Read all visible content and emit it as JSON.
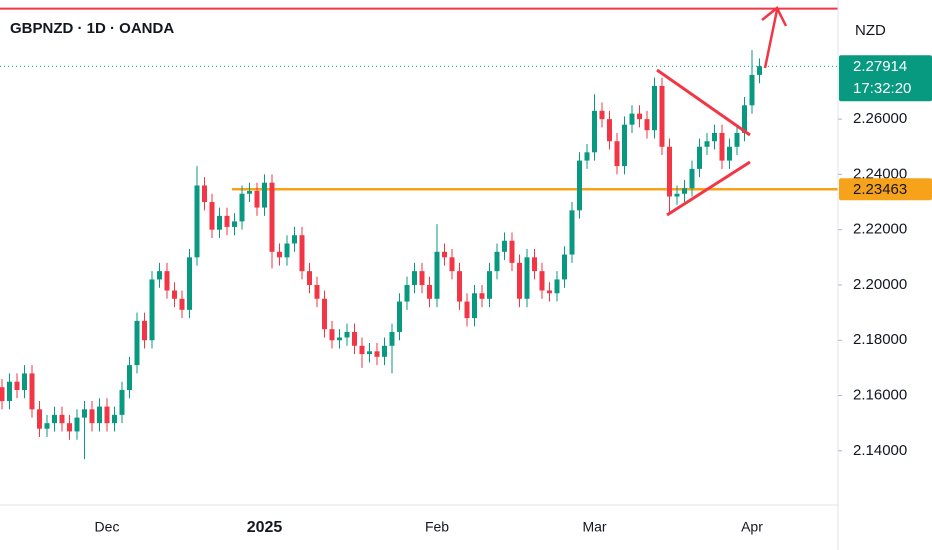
{
  "chart_data": {
    "type": "candlestick",
    "title": "GBPNZD · 1D · OANDA",
    "currency": "NZD",
    "categories": [
      null,
      null,
      null,
      null,
      null,
      null,
      null,
      null,
      null,
      null,
      null,
      null,
      null,
      null,
      "Dec",
      null,
      null,
      null,
      null,
      null,
      null,
      null,
      null,
      null,
      null,
      null,
      null,
      null,
      null,
      null,
      null,
      null,
      null,
      null,
      null,
      "2025",
      null,
      null,
      null,
      null,
      null,
      null,
      null,
      null,
      null,
      null,
      null,
      null,
      null,
      null,
      null,
      null,
      null,
      null,
      null,
      null,
      null,
      null,
      "Feb",
      null,
      null,
      null,
      null,
      null,
      null,
      null,
      null,
      null,
      null,
      null,
      null,
      null,
      null,
      null,
      null,
      null,
      null,
      null,
      null,
      "Mar",
      null,
      null,
      null,
      null,
      null,
      null,
      null,
      null,
      null,
      null,
      null,
      null,
      null,
      null,
      null,
      null,
      null,
      null,
      null,
      null,
      "Apr",
      null
    ],
    "open": [
      2.163,
      2.158,
      2.165,
      2.162,
      2.168,
      2.155,
      2.148,
      2.15,
      2.153,
      2.15,
      2.147,
      2.152,
      2.155,
      2.15,
      2.156,
      2.15,
      2.153,
      2.162,
      2.171,
      2.187,
      2.18,
      2.202,
      2.205,
      2.198,
      2.195,
      2.191,
      2.21,
      2.236,
      2.23,
      2.22,
      2.225,
      2.221,
      2.223,
      2.233,
      2.234,
      2.228,
      2.237,
      2.212,
      2.21,
      2.215,
      2.218,
      2.205,
      2.2,
      2.195,
      2.184,
      2.18,
      2.181,
      2.183,
      2.178,
      2.175,
      2.176,
      2.174,
      2.178,
      2.183,
      2.194,
      2.2,
      2.205,
      2.2,
      2.195,
      2.212,
      2.21,
      2.205,
      2.194,
      2.188,
      2.197,
      2.195,
      2.205,
      2.212,
      2.216,
      2.208,
      2.195,
      2.21,
      2.205,
      2.198,
      2.197,
      2.202,
      2.211,
      2.227,
      2.245,
      2.248,
      2.263,
      2.26,
      2.252,
      2.243,
      2.258,
      2.262,
      2.26,
      2.256,
      2.272,
      2.25,
      2.232,
      2.233,
      2.235,
      2.242,
      2.25,
      2.252,
      2.255,
      2.245,
      2.25,
      2.255,
      2.265,
      2.276
    ],
    "high": [
      2.166,
      2.168,
      2.168,
      2.171,
      2.171,
      2.158,
      2.153,
      2.156,
      2.156,
      2.153,
      2.155,
      2.158,
      2.158,
      2.159,
      2.159,
      2.156,
      2.165,
      2.174,
      2.19,
      2.19,
      2.205,
      2.208,
      2.208,
      2.201,
      2.198,
      2.213,
      2.243,
      2.239,
      2.233,
      2.228,
      2.228,
      2.226,
      2.236,
      2.237,
      2.237,
      2.24,
      2.24,
      2.215,
      2.218,
      2.221,
      2.221,
      2.208,
      2.203,
      2.198,
      2.187,
      2.184,
      2.186,
      2.186,
      2.181,
      2.179,
      2.179,
      2.181,
      2.186,
      2.197,
      2.203,
      2.208,
      2.208,
      2.203,
      2.222,
      2.215,
      2.213,
      2.208,
      2.197,
      2.2,
      2.2,
      2.208,
      2.215,
      2.219,
      2.219,
      2.211,
      2.213,
      2.213,
      2.208,
      2.201,
      2.205,
      2.214,
      2.23,
      2.248,
      2.251,
      2.269,
      2.266,
      2.263,
      2.255,
      2.261,
      2.265,
      2.265,
      2.263,
      2.275,
      2.275,
      2.253,
      2.236,
      2.238,
      2.245,
      2.253,
      2.255,
      2.258,
      2.258,
      2.253,
      2.258,
      2.268,
      2.285,
      2.282
    ],
    "low": [
      2.155,
      2.155,
      2.159,
      2.159,
      2.152,
      2.145,
      2.145,
      2.147,
      2.147,
      2.144,
      2.144,
      2.137,
      2.147,
      2.147,
      2.147,
      2.147,
      2.15,
      2.159,
      2.168,
      2.177,
      2.177,
      2.199,
      2.195,
      2.192,
      2.188,
      2.188,
      2.207,
      2.227,
      2.217,
      2.217,
      2.218,
      2.218,
      2.22,
      2.23,
      2.225,
      2.225,
      2.206,
      2.207,
      2.207,
      2.212,
      2.202,
      2.197,
      2.192,
      2.181,
      2.177,
      2.177,
      2.178,
      2.175,
      2.17,
      2.172,
      2.171,
      2.171,
      2.168,
      2.18,
      2.191,
      2.197,
      2.197,
      2.192,
      2.192,
      2.207,
      2.202,
      2.191,
      2.185,
      2.185,
      2.192,
      2.192,
      2.202,
      2.209,
      2.205,
      2.192,
      2.192,
      2.202,
      2.195,
      2.194,
      2.194,
      2.199,
      2.208,
      2.224,
      2.242,
      2.245,
      2.257,
      2.249,
      2.24,
      2.24,
      2.255,
      2.257,
      2.253,
      2.253,
      2.247,
      2.226,
      2.229,
      2.23,
      2.232,
      2.239,
      2.247,
      2.249,
      2.242,
      2.242,
      2.247,
      2.252,
      2.262,
      2.273
    ],
    "close": [
      2.158,
      2.165,
      2.162,
      2.168,
      2.155,
      2.148,
      2.15,
      2.153,
      2.15,
      2.147,
      2.152,
      2.155,
      2.15,
      2.156,
      2.15,
      2.153,
      2.162,
      2.171,
      2.187,
      2.18,
      2.202,
      2.205,
      2.198,
      2.195,
      2.191,
      2.21,
      2.236,
      2.23,
      2.22,
      2.225,
      2.221,
      2.223,
      2.233,
      2.234,
      2.228,
      2.237,
      2.212,
      2.21,
      2.215,
      2.218,
      2.205,
      2.2,
      2.195,
      2.184,
      2.18,
      2.181,
      2.183,
      2.178,
      2.175,
      2.176,
      2.174,
      2.178,
      2.183,
      2.194,
      2.2,
      2.205,
      2.2,
      2.195,
      2.212,
      2.21,
      2.205,
      2.194,
      2.188,
      2.197,
      2.195,
      2.205,
      2.212,
      2.216,
      2.208,
      2.195,
      2.21,
      2.205,
      2.198,
      2.197,
      2.202,
      2.211,
      2.227,
      2.245,
      2.248,
      2.263,
      2.26,
      2.252,
      2.243,
      2.258,
      2.262,
      2.26,
      2.256,
      2.272,
      2.25,
      2.232,
      2.233,
      2.235,
      2.242,
      2.25,
      2.252,
      2.255,
      2.245,
      2.25,
      2.255,
      2.265,
      2.276,
      2.27914
    ],
    "up_color": "#089981",
    "down_color": "#f23645",
    "ylim": [
      2.1222,
      2.3031
    ],
    "yticks": [
      {
        "value": 2.14,
        "label": "2.14000"
      },
      {
        "value": 2.16,
        "label": "2.16000"
      },
      {
        "value": 2.18,
        "label": "2.18000"
      },
      {
        "value": 2.2,
        "label": "2.20000"
      },
      {
        "value": 2.22,
        "label": "2.22000"
      },
      {
        "value": 2.24,
        "label": "2.24000"
      },
      {
        "value": 2.26,
        "label": "2.26000"
      }
    ],
    "grid": false,
    "last_price": 2.27914,
    "countdown": "17:32:20",
    "last_price_color": "#089981",
    "levels": [
      {
        "value": 2.23463,
        "color": "#f7a21b"
      },
      {
        "value": 2.3,
        "color": "#f23645"
      }
    ]
  }
}
